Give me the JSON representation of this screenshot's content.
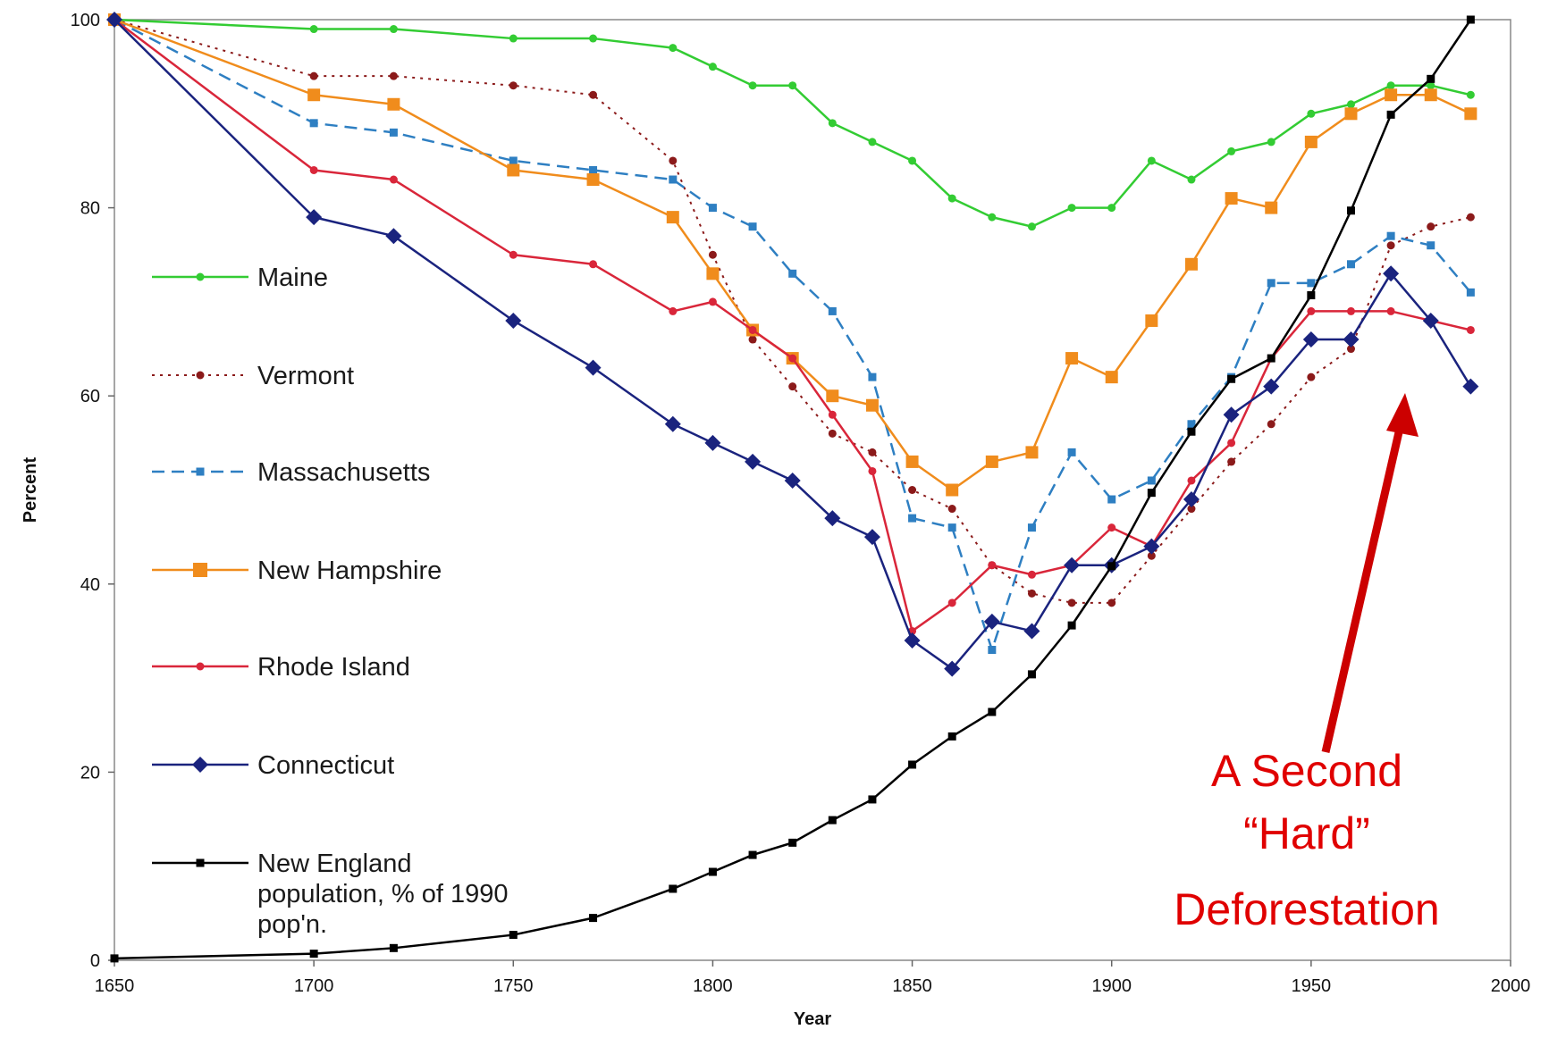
{
  "chart_data": {
    "type": "line",
    "xlabel": "Year",
    "ylabel": "Percent",
    "xlim": [
      1650,
      2000
    ],
    "ylim": [
      0,
      100
    ],
    "xticks": [
      1650,
      1700,
      1750,
      1800,
      1850,
      1900,
      1950,
      2000
    ],
    "yticks": [
      0,
      20,
      40,
      60,
      80,
      100
    ],
    "grid": false,
    "legend_position": "left",
    "series": [
      {
        "name": "Maine",
        "color": "#33cc33",
        "marker": "dot",
        "dash": "solid",
        "points": [
          [
            1650,
            100
          ],
          [
            1700,
            99
          ],
          [
            1720,
            99
          ],
          [
            1750,
            98
          ],
          [
            1770,
            98
          ],
          [
            1790,
            97
          ],
          [
            1800,
            95
          ],
          [
            1810,
            93
          ],
          [
            1820,
            93
          ],
          [
            1830,
            89
          ],
          [
            1840,
            87
          ],
          [
            1850,
            85
          ],
          [
            1860,
            81
          ],
          [
            1870,
            79
          ],
          [
            1880,
            78
          ],
          [
            1890,
            80
          ],
          [
            1900,
            80
          ],
          [
            1910,
            85
          ],
          [
            1920,
            83
          ],
          [
            1930,
            86
          ],
          [
            1940,
            87
          ],
          [
            1950,
            90
          ],
          [
            1960,
            91
          ],
          [
            1970,
            93
          ],
          [
            1980,
            93
          ],
          [
            1990,
            92
          ]
        ]
      },
      {
        "name": "Vermont",
        "color": "#8b1a1a",
        "marker": "dot",
        "dash": "dotted",
        "points": [
          [
            1650,
            100
          ],
          [
            1700,
            94
          ],
          [
            1720,
            94
          ],
          [
            1750,
            93
          ],
          [
            1770,
            92
          ],
          [
            1790,
            85
          ],
          [
            1800,
            75
          ],
          [
            1810,
            66
          ],
          [
            1820,
            61
          ],
          [
            1830,
            56
          ],
          [
            1840,
            54
          ],
          [
            1850,
            50
          ],
          [
            1860,
            48
          ],
          [
            1870,
            42
          ],
          [
            1880,
            39
          ],
          [
            1890,
            38
          ],
          [
            1900,
            38
          ],
          [
            1910,
            43
          ],
          [
            1920,
            48
          ],
          [
            1930,
            53
          ],
          [
            1940,
            57
          ],
          [
            1950,
            62
          ],
          [
            1960,
            65
          ],
          [
            1970,
            76
          ],
          [
            1980,
            78
          ],
          [
            1990,
            79
          ]
        ]
      },
      {
        "name": "Massachusetts",
        "color": "#2e7fc2",
        "marker": "square-small",
        "dash": "dashed",
        "points": [
          [
            1650,
            100
          ],
          [
            1700,
            89
          ],
          [
            1720,
            88
          ],
          [
            1750,
            85
          ],
          [
            1770,
            84
          ],
          [
            1790,
            83
          ],
          [
            1800,
            80
          ],
          [
            1810,
            78
          ],
          [
            1820,
            73
          ],
          [
            1830,
            69
          ],
          [
            1840,
            62
          ],
          [
            1850,
            47
          ],
          [
            1860,
            46
          ],
          [
            1870,
            33
          ],
          [
            1880,
            46
          ],
          [
            1890,
            54
          ],
          [
            1900,
            49
          ],
          [
            1910,
            51
          ],
          [
            1920,
            57
          ],
          [
            1930,
            62
          ],
          [
            1940,
            72
          ],
          [
            1950,
            72
          ],
          [
            1960,
            74
          ],
          [
            1970,
            77
          ],
          [
            1980,
            76
          ],
          [
            1990,
            71
          ]
        ]
      },
      {
        "name": "New Hampshire",
        "color": "#f08c1c",
        "marker": "square",
        "dash": "solid",
        "points": [
          [
            1650,
            100
          ],
          [
            1700,
            92
          ],
          [
            1720,
            91
          ],
          [
            1750,
            84
          ],
          [
            1770,
            83
          ],
          [
            1790,
            79
          ],
          [
            1800,
            73
          ],
          [
            1810,
            67
          ],
          [
            1820,
            64
          ],
          [
            1830,
            60
          ],
          [
            1840,
            59
          ],
          [
            1850,
            53
          ],
          [
            1860,
            50
          ],
          [
            1870,
            53
          ],
          [
            1880,
            54
          ],
          [
            1890,
            64
          ],
          [
            1900,
            62
          ],
          [
            1910,
            68
          ],
          [
            1920,
            74
          ],
          [
            1930,
            81
          ],
          [
            1940,
            80
          ],
          [
            1950,
            87
          ],
          [
            1960,
            90
          ],
          [
            1970,
            92
          ],
          [
            1980,
            92
          ],
          [
            1990,
            90
          ]
        ]
      },
      {
        "name": "Rhode Island",
        "color": "#d9263a",
        "marker": "dot",
        "dash": "solid",
        "points": [
          [
            1650,
            100
          ],
          [
            1700,
            84
          ],
          [
            1720,
            83
          ],
          [
            1750,
            75
          ],
          [
            1770,
            74
          ],
          [
            1790,
            69
          ],
          [
            1800,
            70
          ],
          [
            1810,
            67
          ],
          [
            1820,
            64
          ],
          [
            1830,
            58
          ],
          [
            1840,
            52
          ],
          [
            1850,
            35
          ],
          [
            1860,
            38
          ],
          [
            1870,
            42
          ],
          [
            1880,
            41
          ],
          [
            1890,
            42
          ],
          [
            1900,
            46
          ],
          [
            1910,
            44
          ],
          [
            1920,
            51
          ],
          [
            1930,
            55
          ],
          [
            1940,
            64
          ],
          [
            1950,
            69
          ],
          [
            1960,
            69
          ],
          [
            1970,
            69
          ],
          [
            1980,
            68
          ],
          [
            1990,
            67
          ]
        ]
      },
      {
        "name": "Connecticut",
        "color": "#1a237e",
        "marker": "diamond",
        "dash": "solid",
        "points": [
          [
            1650,
            100
          ],
          [
            1700,
            79
          ],
          [
            1720,
            77
          ],
          [
            1750,
            68
          ],
          [
            1770,
            63
          ],
          [
            1790,
            57
          ],
          [
            1800,
            55
          ],
          [
            1810,
            53
          ],
          [
            1820,
            51
          ],
          [
            1830,
            47
          ],
          [
            1840,
            45
          ],
          [
            1850,
            34
          ],
          [
            1860,
            31
          ],
          [
            1870,
            36
          ],
          [
            1880,
            35
          ],
          [
            1890,
            42
          ],
          [
            1900,
            42
          ],
          [
            1910,
            44
          ],
          [
            1920,
            49
          ],
          [
            1930,
            58
          ],
          [
            1940,
            61
          ],
          [
            1950,
            66
          ],
          [
            1960,
            66
          ],
          [
            1970,
            73
          ],
          [
            1980,
            68
          ],
          [
            1990,
            61
          ]
        ]
      },
      {
        "name": "New England population, % of 1990 pop'n.",
        "color": "#000000",
        "marker": "square-small",
        "dash": "solid",
        "points": [
          [
            1650,
            0.2
          ],
          [
            1700,
            0.7
          ],
          [
            1720,
            1.3
          ],
          [
            1750,
            2.7
          ],
          [
            1770,
            4.5
          ],
          [
            1790,
            7.6
          ],
          [
            1800,
            9.4
          ],
          [
            1810,
            11.2
          ],
          [
            1820,
            12.5
          ],
          [
            1830,
            14.9
          ],
          [
            1840,
            17.1
          ],
          [
            1850,
            20.8
          ],
          [
            1860,
            23.8
          ],
          [
            1870,
            26.4
          ],
          [
            1880,
            30.4
          ],
          [
            1890,
            35.6
          ],
          [
            1900,
            41.9
          ],
          [
            1910,
            49.7
          ],
          [
            1920,
            56.2
          ],
          [
            1930,
            61.8
          ],
          [
            1940,
            64.0
          ],
          [
            1950,
            70.7
          ],
          [
            1960,
            79.7
          ],
          [
            1970,
            89.9
          ],
          [
            1980,
            93.7
          ],
          [
            1990,
            100
          ]
        ]
      }
    ],
    "legend_lines": [
      [
        "Maine"
      ],
      [
        "Vermont"
      ],
      [
        "Massachusetts"
      ],
      [
        "New Hampshire"
      ],
      [
        "Rhode Island"
      ],
      [
        "Connecticut"
      ],
      [
        "New England",
        "population, % of 1990",
        "pop'n."
      ]
    ],
    "annotation": {
      "lines": [
        "A Second",
        "“Hard”",
        "Deforestation"
      ],
      "color": "#e00000",
      "arrow_color": "#cc0000"
    }
  }
}
